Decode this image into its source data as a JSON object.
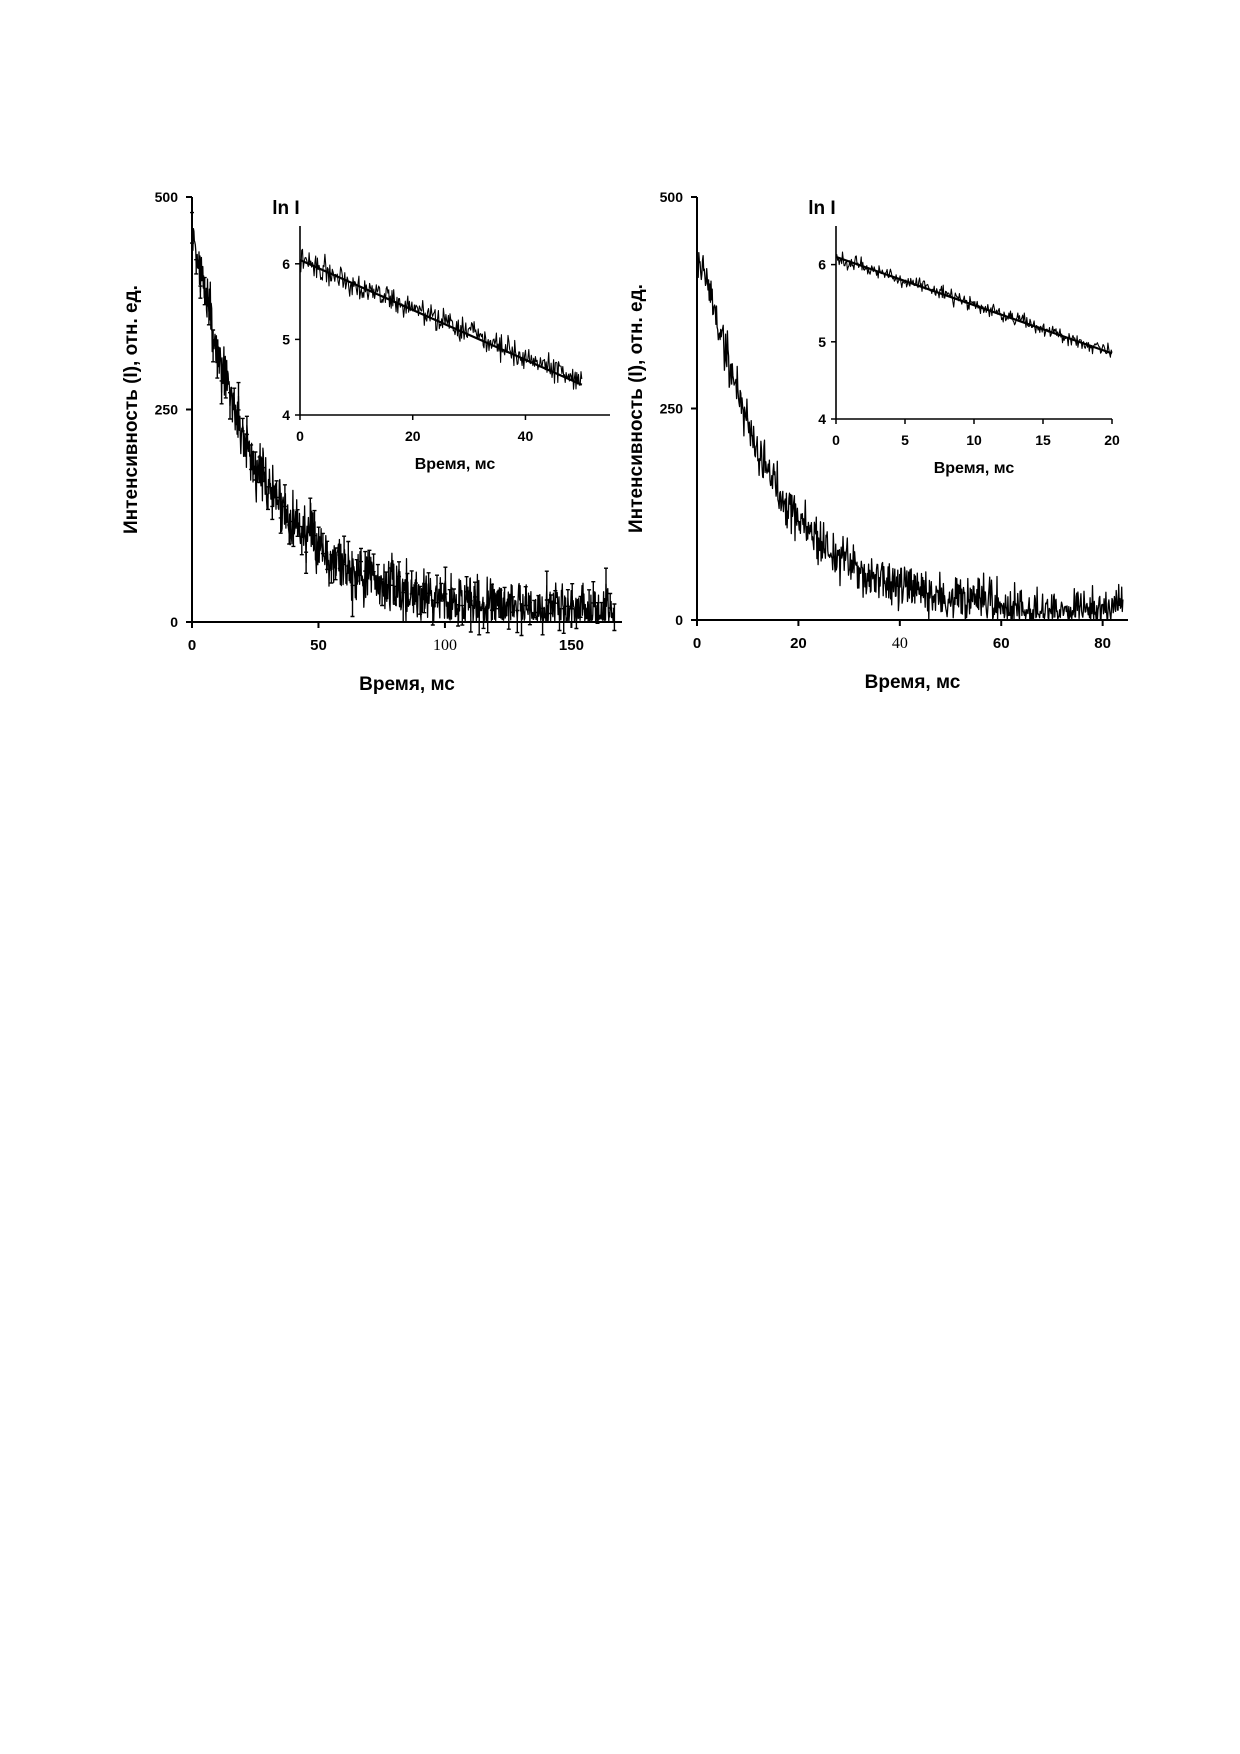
{
  "chart_data": [
    {
      "type": "line",
      "title": "",
      "xlabel": "Время, мс",
      "ylabel": "Интенсивность (I), отн. ед.",
      "xlim": [
        0,
        170
      ],
      "ylim": [
        0,
        500
      ],
      "xticks": [
        {
          "v": 0,
          "t": "0"
        },
        {
          "v": 50,
          "t": "50"
        },
        {
          "v": 100,
          "t": "100"
        },
        {
          "v": 150,
          "t": "150"
        }
      ],
      "yticks": [
        {
          "v": 0,
          "t": "0"
        },
        {
          "v": 250,
          "t": "250"
        },
        {
          "v": 500,
          "t": "500"
        }
      ],
      "serif_xtick_labels": [
        "100"
      ],
      "series": [
        {
          "x": [
            0,
            5,
            10,
            15,
            20,
            25,
            30,
            40,
            50,
            60,
            70,
            80,
            90,
            100,
            110,
            120,
            130,
            140,
            150,
            160,
            167
          ],
          "y": [
            455,
            390,
            320,
            270,
            220,
            185,
            160,
            120,
            90,
            68,
            52,
            40,
            33,
            27,
            22,
            20,
            17,
            15,
            14,
            13,
            12
          ]
        }
      ],
      "noise_amplitude": 30,
      "error_bars": true,
      "inset": {
        "type": "line",
        "title": "ln I",
        "xlabel": "Время, мс",
        "xlim": [
          0,
          55
        ],
        "ylim": [
          4,
          6.5
        ],
        "xticks": [
          {
            "v": 0,
            "t": "0"
          },
          {
            "v": 20,
            "t": "20"
          },
          {
            "v": 40,
            "t": "40"
          }
        ],
        "yticks": [
          {
            "v": 4,
            "t": "4"
          },
          {
            "v": 5,
            "t": "5"
          },
          {
            "v": 6,
            "t": "6"
          }
        ],
        "noisy_series": {
          "x_start": 0,
          "x_end": 50,
          "y_start": 6.05,
          "y_end": 4.45,
          "noise_amplitude": 0.14
        },
        "fit_line": {
          "x": [
            0,
            50
          ],
          "y": [
            6.05,
            4.4
          ]
        }
      }
    },
    {
      "type": "line",
      "title": "",
      "xlabel": "Время, мс",
      "ylabel": "Интенсивность (I), отн. ед.",
      "xlim": [
        0,
        85
      ],
      "ylim": [
        0,
        500
      ],
      "xticks": [
        {
          "v": 0,
          "t": "0"
        },
        {
          "v": 20,
          "t": "20"
        },
        {
          "v": 40,
          "t": "40"
        },
        {
          "v": 60,
          "t": "60"
        },
        {
          "v": 80,
          "t": "80"
        }
      ],
      "yticks": [
        {
          "v": 0,
          "t": "0"
        },
        {
          "v": 250,
          "t": "250"
        },
        {
          "v": 500,
          "t": "500"
        }
      ],
      "serif_xtick_labels": [
        "40"
      ],
      "series": [
        {
          "x": [
            0,
            2,
            5,
            8,
            10,
            12,
            15,
            20,
            25,
            30,
            35,
            40,
            45,
            50,
            55,
            60,
            65,
            70,
            75,
            80,
            84
          ],
          "y": [
            430,
            400,
            330,
            270,
            235,
            200,
            165,
            120,
            88,
            65,
            50,
            38,
            30,
            24,
            20,
            16,
            14,
            12,
            11,
            10,
            10
          ]
        }
      ],
      "noise_amplitude": 26,
      "error_bars": false,
      "inset": {
        "type": "line",
        "title": "ln I",
        "xlabel": "Время, мс",
        "xlim": [
          0,
          20
        ],
        "ylim": [
          4,
          6.5
        ],
        "xticks": [
          {
            "v": 0,
            "t": "0"
          },
          {
            "v": 5,
            "t": "5"
          },
          {
            "v": 10,
            "t": "10"
          },
          {
            "v": 15,
            "t": "15"
          },
          {
            "v": 20,
            "t": "20"
          }
        ],
        "yticks": [
          {
            "v": 4,
            "t": "4"
          },
          {
            "v": 5,
            "t": "5"
          },
          {
            "v": 6,
            "t": "6"
          }
        ],
        "noisy_series": {
          "x_start": 0,
          "x_end": 20,
          "y_start": 6.1,
          "y_end": 4.85,
          "noise_amplitude": 0.08
        },
        "fit_line": {
          "x": [
            0,
            20
          ],
          "y": [
            6.1,
            4.85
          ]
        }
      }
    }
  ]
}
